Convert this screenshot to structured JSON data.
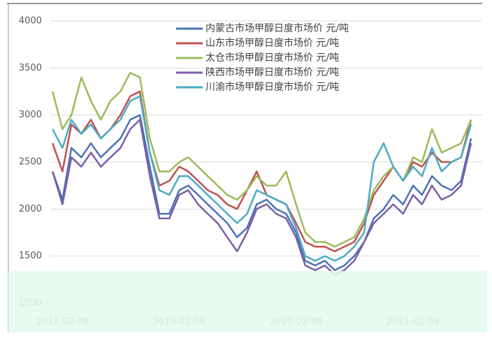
{
  "chart_data": {
    "type": "line",
    "x": [
      "2018-01-08",
      "2018-02-08",
      "2018-03-08",
      "2018-04-08",
      "2018-05-08",
      "2018-06-08",
      "2018-07-08",
      "2018-08-08",
      "2018-09-08",
      "2018-10-08",
      "2018-11-08",
      "2018-12-08",
      "2019-01-08",
      "2019-02-08",
      "2019-03-08",
      "2019-04-08",
      "2019-05-08",
      "2019-06-08",
      "2019-07-08",
      "2019-08-08",
      "2019-09-08",
      "2019-10-08",
      "2019-11-08",
      "2019-12-08",
      "2020-01-08",
      "2020-02-08",
      "2020-03-08",
      "2020-04-08",
      "2020-05-08",
      "2020-06-08",
      "2020-07-08",
      "2020-08-08",
      "2020-09-08",
      "2020-10-08",
      "2020-11-08",
      "2020-12-08",
      "2021-01-08",
      "2021-02-08",
      "2021-03-08",
      "2021-04-08",
      "2021-05-08",
      "2021-06-08",
      "2021-07-08",
      "2021-08-08"
    ],
    "series": [
      {
        "name": "内蒙古市场甲醇日度市场价 元/吨",
        "color": "#4a72b8",
        "values": [
          2400,
          2100,
          2650,
          2550,
          2700,
          2550,
          2650,
          2750,
          2950,
          3000,
          2450,
          1950,
          1950,
          2200,
          2250,
          2150,
          2050,
          1950,
          1850,
          1700,
          1800,
          2050,
          2100,
          2000,
          1950,
          1750,
          1450,
          1400,
          1450,
          1350,
          1400,
          1500,
          1650,
          1900,
          2000,
          2150,
          2050,
          2250,
          2150,
          2350,
          2250,
          2200,
          2300,
          2750
        ]
      },
      {
        "name": "山东市场甲醇日度市场价 元/吨",
        "color": "#c0504d",
        "values": [
          2700,
          2400,
          2900,
          2800,
          2950,
          2750,
          2850,
          3000,
          3200,
          3250,
          2600,
          2250,
          2300,
          2450,
          2400,
          2300,
          2200,
          2150,
          2050,
          2000,
          2200,
          2400,
          2150,
          2100,
          2050,
          1850,
          1650,
          1600,
          1600,
          1550,
          1600,
          1650,
          1850,
          2150,
          2300,
          2450,
          2300,
          2500,
          2450,
          2600,
          2500,
          2500,
          2550,
          2950
        ]
      },
      {
        "name": "太仓市场甲醇日度市场价 元/吨",
        "color": "#9bbb59",
        "values": [
          3250,
          2850,
          3000,
          3400,
          3150,
          2950,
          3150,
          3250,
          3450,
          3400,
          2750,
          2400,
          2400,
          2500,
          2550,
          2450,
          2350,
          2250,
          2150,
          2100,
          2200,
          2350,
          2250,
          2250,
          2400,
          2050,
          1750,
          1650,
          1650,
          1600,
          1650,
          1700,
          1900,
          2200,
          2350,
          2450,
          2300,
          2550,
          2500,
          2850,
          2600,
          2650,
          2700,
          2950
        ]
      },
      {
        "name": "陕西市场甲醇日度市场价 元/吨",
        "color": "#7b5ea7",
        "values": [
          2400,
          2050,
          2550,
          2450,
          2600,
          2450,
          2550,
          2650,
          2850,
          2950,
          2350,
          1900,
          1900,
          2150,
          2200,
          2050,
          1950,
          1850,
          1700,
          1550,
          1750,
          2000,
          2050,
          1950,
          1900,
          1700,
          1400,
          1350,
          1400,
          1300,
          1350,
          1450,
          1650,
          1850,
          1950,
          2050,
          1950,
          2150,
          2050,
          2250,
          2100,
          2150,
          2250,
          2700
        ]
      },
      {
        "name": "川渝市场甲醇日度市场价 元/吨",
        "color": "#4bacc6",
        "values": [
          2850,
          2650,
          2950,
          2800,
          2900,
          2750,
          2850,
          2950,
          3150,
          3200,
          2600,
          2200,
          2150,
          2350,
          2350,
          2250,
          2150,
          2050,
          1950,
          1850,
          1950,
          2200,
          2150,
          2100,
          2050,
          1800,
          1500,
          1450,
          1500,
          1450,
          1500,
          1600,
          1750,
          2500,
          2700,
          2450,
          2300,
          2450,
          2350,
          2650,
          2400,
          2500,
          2550,
          2900
        ]
      }
    ],
    "xlim": [
      "2018-01-01",
      "2021-09-12"
    ],
    "xticks": [
      "2018-02-08",
      "2019-02-08",
      "2020-02-08",
      "2021-02-08"
    ],
    "ylim": [
      1000,
      4000
    ],
    "yticks": [
      1000,
      1500,
      2000,
      2500,
      3000,
      3500,
      4000
    ],
    "grid": true,
    "legend": "top"
  }
}
